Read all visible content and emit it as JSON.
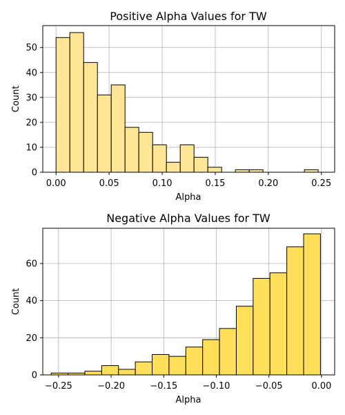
{
  "chart_data": [
    {
      "type": "bar",
      "title": "Positive Alpha Values for TW",
      "xlabel": "Alpha",
      "ylabel": "Count",
      "color": "#ffe697",
      "edge_color": "#000000",
      "grid": true,
      "xlim": [
        -0.0125,
        0.2625
      ],
      "ylim": [
        0,
        58.8
      ],
      "xticks": [
        0.0,
        0.05,
        0.1,
        0.15,
        0.2,
        0.25
      ],
      "xtick_labels": [
        "0.00",
        "0.05",
        "0.10",
        "0.15",
        "0.20",
        "0.25"
      ],
      "yticks": [
        0,
        10,
        20,
        30,
        40,
        50
      ],
      "yticks_labels": [
        "0",
        "10",
        "20",
        "30",
        "40",
        "50"
      ],
      "bin_edges": [
        0.0,
        0.013,
        0.026,
        0.039,
        0.052,
        0.065,
        0.078,
        0.091,
        0.104,
        0.117,
        0.13,
        0.143,
        0.156,
        0.169,
        0.182,
        0.195,
        0.208,
        0.221,
        0.234,
        0.247
      ],
      "values": [
        54,
        56,
        44,
        31,
        35,
        18,
        16,
        11,
        4,
        11,
        6,
        2,
        0,
        1,
        1,
        0,
        0,
        0,
        1
      ]
    },
    {
      "type": "bar",
      "title": "Negative Alpha Values for TW",
      "xlabel": "Alpha",
      "ylabel": "Count",
      "color": "#ffdf5a",
      "edge_color": "#000000",
      "grid": true,
      "xlim": [
        -0.265,
        0.0125
      ],
      "ylim": [
        0,
        79
      ],
      "xticks": [
        -0.25,
        -0.2,
        -0.15,
        -0.1,
        -0.05,
        0.0
      ],
      "xtick_labels": [
        "−0.25",
        "−0.20",
        "−0.15",
        "−0.10",
        "−0.05",
        "0.00"
      ],
      "yticks": [
        0,
        20,
        40,
        60
      ],
      "yticks_labels": [
        "0",
        "20",
        "40",
        "60"
      ],
      "bin_edges": [
        -0.257,
        -0.241,
        -0.225,
        -0.209,
        -0.193,
        -0.177,
        -0.161,
        -0.145,
        -0.129,
        -0.113,
        -0.097,
        -0.081,
        -0.065,
        -0.049,
        -0.033,
        -0.017,
        -0.001
      ],
      "values": [
        1,
        1,
        2,
        5,
        3,
        7,
        11,
        10,
        15,
        19,
        25,
        37,
        52,
        55,
        69,
        76
      ]
    }
  ]
}
